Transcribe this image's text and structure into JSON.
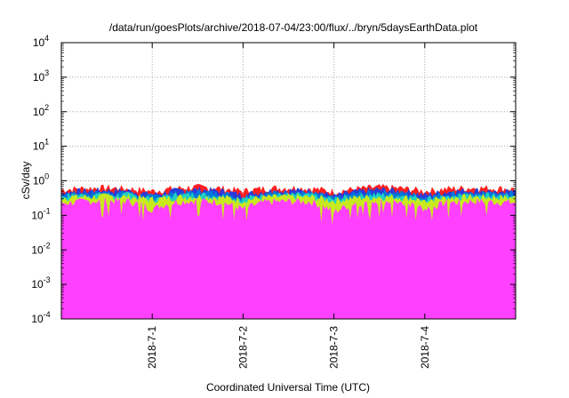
{
  "chart_data": {
    "type": "area",
    "title": "/data/run/goesPlots/archive/2018-07-04/23:00/flux/../bryn/5daysEarthData.plot",
    "xlabel": "Coordinated Universal Time (UTC)",
    "ylabel": "cSv/day",
    "yscale": "log",
    "ylim": [
      0.0001,
      10000
    ],
    "xlim": [
      "2018-06-30T00:00",
      "2018-07-05T00:00"
    ],
    "x_ticks": [
      "2018-7-1",
      "2018-7-2",
      "2018-7-3",
      "2018-7-4"
    ],
    "y_ticks": [
      {
        "base": "10",
        "exp": "4"
      },
      {
        "base": "10",
        "exp": "3"
      },
      {
        "base": "10",
        "exp": "2"
      },
      {
        "base": "10",
        "exp": "1"
      },
      {
        "base": "10",
        "exp": "0"
      },
      {
        "base": "10",
        "exp": "-1"
      },
      {
        "base": "10",
        "exp": "-2"
      },
      {
        "base": "10",
        "exp": "-3"
      },
      {
        "base": "10",
        "exp": "-4"
      }
    ],
    "grid": true,
    "legend": "none",
    "sample_times_days": [
      0,
      0.25,
      0.5,
      0.75,
      1,
      1.25,
      1.5,
      1.75,
      2,
      2.25,
      2.5,
      2.75,
      3,
      3.25,
      3.5,
      3.75,
      4,
      4.25,
      4.5,
      4.75,
      5
    ],
    "series": [
      {
        "color": "#ff2020",
        "values": [
          0.55,
          0.6,
          0.62,
          0.58,
          0.5,
          0.6,
          0.65,
          0.6,
          0.5,
          0.6,
          0.62,
          0.6,
          0.48,
          0.58,
          0.65,
          0.6,
          0.5,
          0.58,
          0.62,
          0.6,
          0.58
        ]
      },
      {
        "color": "#2a3bd8",
        "values": [
          0.45,
          0.5,
          0.52,
          0.5,
          0.38,
          0.5,
          0.55,
          0.5,
          0.38,
          0.5,
          0.52,
          0.5,
          0.35,
          0.48,
          0.55,
          0.5,
          0.38,
          0.48,
          0.52,
          0.5,
          0.48
        ]
      },
      {
        "color": "#0077d9",
        "values": [
          0.4,
          0.44,
          0.45,
          0.43,
          0.33,
          0.43,
          0.46,
          0.43,
          0.33,
          0.43,
          0.45,
          0.43,
          0.3,
          0.42,
          0.46,
          0.43,
          0.33,
          0.42,
          0.45,
          0.43,
          0.42
        ]
      },
      {
        "color": "#20d0c0",
        "values": [
          0.36,
          0.38,
          0.39,
          0.38,
          0.3,
          0.37,
          0.39,
          0.37,
          0.3,
          0.37,
          0.38,
          0.37,
          0.28,
          0.36,
          0.39,
          0.37,
          0.3,
          0.36,
          0.38,
          0.37,
          0.36
        ]
      },
      {
        "color": "#c8e820",
        "values": [
          0.33,
          0.34,
          0.35,
          0.34,
          0.28,
          0.33,
          0.35,
          0.33,
          0.27,
          0.33,
          0.34,
          0.33,
          0.26,
          0.32,
          0.34,
          0.33,
          0.27,
          0.32,
          0.34,
          0.33,
          0.32
        ]
      },
      {
        "color": "#ff40ff",
        "values": [
          0.22,
          0.25,
          0.26,
          0.25,
          0.15,
          0.24,
          0.26,
          0.24,
          0.15,
          0.24,
          0.25,
          0.24,
          0.12,
          0.23,
          0.26,
          0.24,
          0.15,
          0.23,
          0.25,
          0.24,
          0.23
        ]
      }
    ]
  }
}
